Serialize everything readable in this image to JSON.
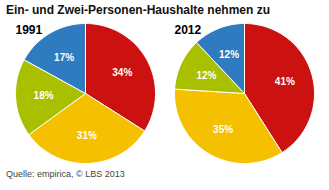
{
  "title": "Ein- und Zwei-Personen-Haushalte nehmen zu",
  "caption": "Quelle: empirica, © LBS 2013",
  "chart_data": [
    {
      "type": "pie",
      "subtitle": "1991",
      "values": [
        34,
        31,
        18,
        17
      ],
      "value_labels": [
        "34%",
        "31%",
        "18%",
        "17%"
      ],
      "colors": [
        "#cc1111",
        "#f5c000",
        "#a8c000",
        "#2e7bbf"
      ],
      "data_labels": true
    },
    {
      "type": "pie",
      "subtitle": "2012",
      "values": [
        41,
        35,
        12,
        12
      ],
      "value_labels": [
        "41%",
        "35%",
        "12%",
        "12%"
      ],
      "colors": [
        "#cc1111",
        "#f5c000",
        "#a8c000",
        "#2e7bbf"
      ],
      "data_labels": true
    }
  ]
}
